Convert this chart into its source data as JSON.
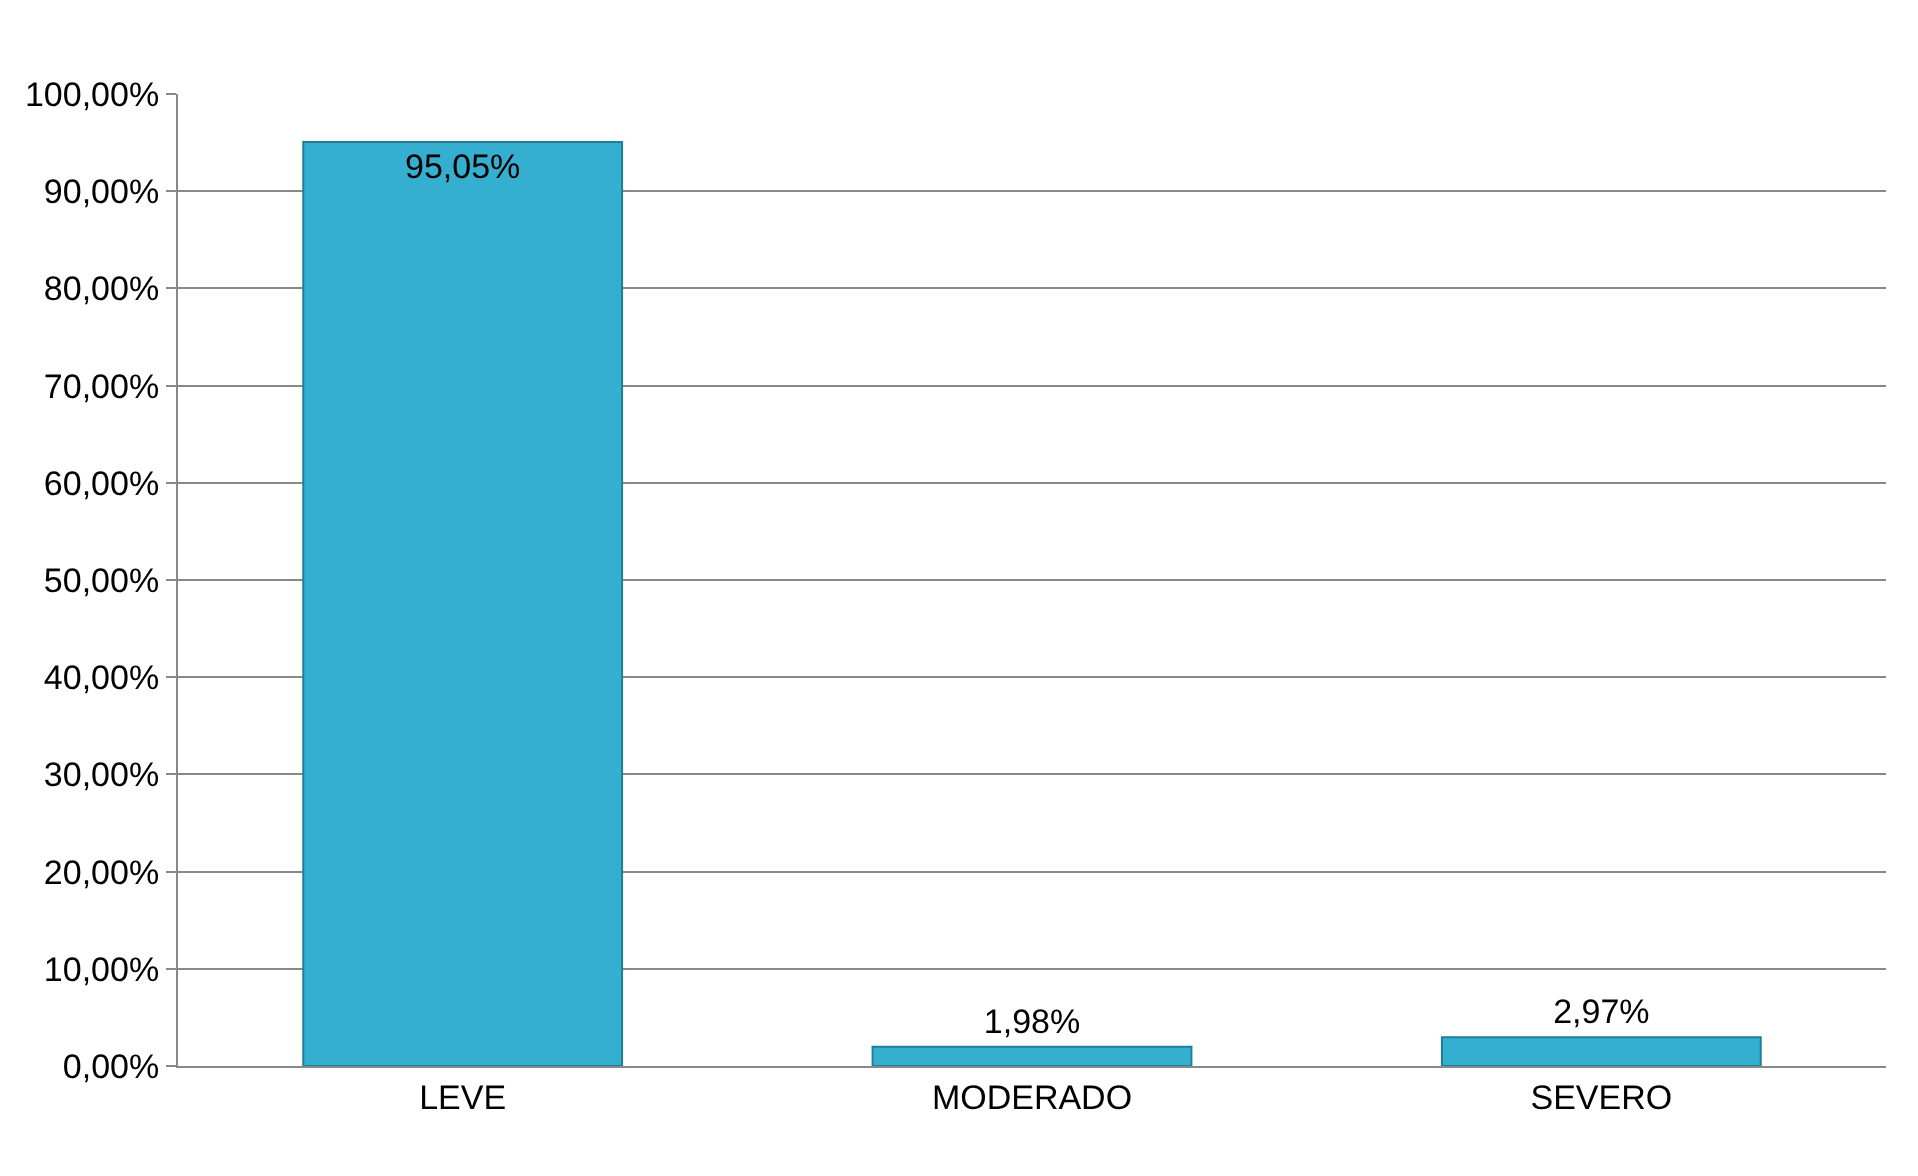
{
  "chart_data": {
    "type": "bar",
    "categories": [
      "LEVE",
      "MODERADO",
      "SEVERO"
    ],
    "values": [
      95.05,
      1.98,
      2.97
    ],
    "value_labels": [
      "95,05%",
      "1,98%",
      "2,97%"
    ],
    "color": "#35afd0",
    "ylim": [
      0,
      100
    ],
    "yticks": [
      {
        "value": 0,
        "label": "0,00%"
      },
      {
        "value": 10,
        "label": "10,00%"
      },
      {
        "value": 20,
        "label": "20,00%"
      },
      {
        "value": 30,
        "label": "30,00%"
      },
      {
        "value": 40,
        "label": "40,00%"
      },
      {
        "value": 50,
        "label": "50,00%"
      },
      {
        "value": 60,
        "label": "60,00%"
      },
      {
        "value": 70,
        "label": "70,00%"
      },
      {
        "value": 80,
        "label": "80,00%"
      },
      {
        "value": 90,
        "label": "90,00%"
      },
      {
        "value": 100,
        "label": "100,00%"
      }
    ],
    "grid": "y",
    "legend": false
  }
}
